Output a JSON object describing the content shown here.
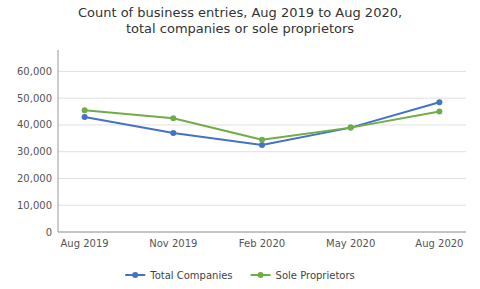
{
  "chart_data": {
    "type": "line",
    "title": "Count of business entries, Aug 2019 to Aug 2020,\ntotal companies or sole proprietors",
    "categories": [
      "Aug 2019",
      "Nov 2019",
      "Feb 2020",
      "May 2020",
      "Aug 2020"
    ],
    "series": [
      {
        "name": "Total Companies",
        "color": "#4472C4",
        "marker": "circle",
        "values": [
          43000,
          37000,
          32500,
          39000,
          48500
        ]
      },
      {
        "name": "Sole Proprietors",
        "color": "#70AD47",
        "marker": "circle",
        "values": [
          45500,
          42500,
          34500,
          39000,
          45000
        ]
      }
    ],
    "ylim": [
      0,
      68000
    ],
    "yticks": [
      0,
      {
        "value": 10000,
        "label": "10,000"
      },
      {
        "value": 20000,
        "label": "20,000"
      },
      {
        "value": 30000,
        "label": "30,000"
      },
      {
        "value": 40000,
        "label": "40,000"
      },
      {
        "value": 50000,
        "label": "50,000"
      },
      {
        "value": 60000,
        "label": "60,000"
      }
    ],
    "grid": true,
    "legend": "bottom"
  }
}
